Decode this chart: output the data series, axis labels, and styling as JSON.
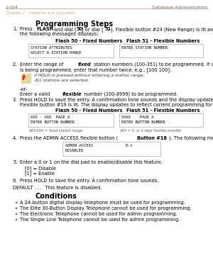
{
  "header_left": "2-104",
  "header_right": "Database Administration",
  "subheader": "Chapter 2 - Features and Operation",
  "header_line_color": "#c8a882",
  "subheader_color": "#c8a882",
  "title": "Programming Steps",
  "background": "#ffffff",
  "text_color": "#000000",
  "box_border_color": "#aaaaaa",
  "bold_header_color": "#c8a882",
  "box1_title": "Flash 50 - Fixed Numbers",
  "box2_title": "Flash 51 - Flexible Numbers",
  "box1_line1": "STATION ATTRIBUTES",
  "box1_line2": "SELECT A STATION RANGE",
  "box2_line1": "ENTER STATION NUMBER",
  "box3_line1": "XXX - XXX  PAGE A",
  "box3_line2": "ENTER BUTTON NUMBER",
  "box4_line1": "SXXX    PAGE A",
  "box4_line2": "ENTER BUTTON NUMBER",
  "box3_caption": "XXX-XXX = fixed station range",
  "box4_caption": "XXX = 3- or 4-digit flexible number",
  "box5_line1": "ADMIN ACCESS              0-1",
  "box5_line2": "DISABLED",
  "default_text": "DEFAULT . . .  This feature is disabled.",
  "conditions_title": "Conditions",
  "conditions": [
    "A 24-button digital display telephone must be used for programming.",
    "The Elite 30-Button Display Telephone cannot be used for programming.",
    "The Electronic Telephone cannot be used for admin programming.",
    "The Single Line Telephone cannot be used for admin programming."
  ]
}
